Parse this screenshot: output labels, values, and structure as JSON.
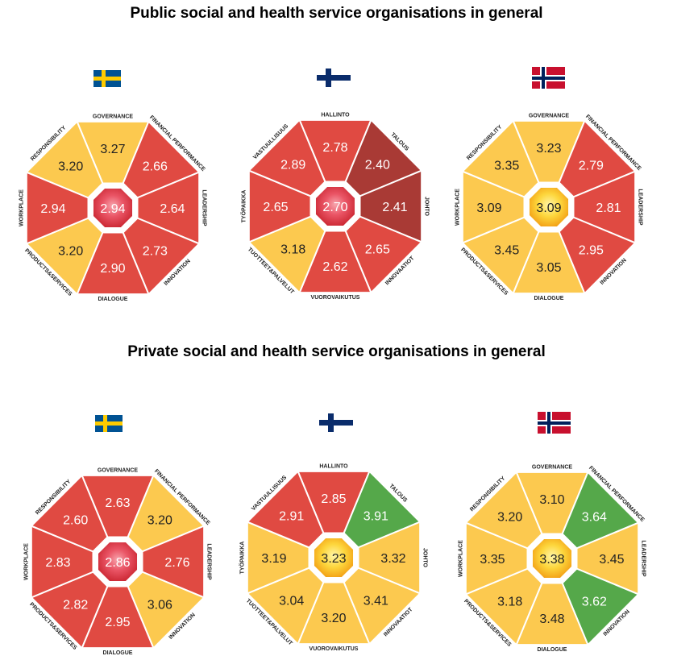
{
  "sections": [
    {
      "title": "Public social and health service organisations in general",
      "wheels": [
        {
          "flag": "sweden-flag",
          "center": "2.94",
          "center_color": "red",
          "segments": [
            {
              "label": "GOVERNANCE",
              "value": "3.27",
              "color": "yellow"
            },
            {
              "label": "FINANCIAL PERFORMANCE",
              "value": "2.66",
              "color": "red"
            },
            {
              "label": "LEADERSHIP",
              "value": "2.64",
              "color": "red"
            },
            {
              "label": "INNOVATION",
              "value": "2.73",
              "color": "red"
            },
            {
              "label": "DIALOGUE",
              "value": "2.90",
              "color": "red"
            },
            {
              "label": "PRODUCTS&SERVICES",
              "value": "3.20",
              "color": "yellow"
            },
            {
              "label": "WORKPLACE",
              "value": "2.94",
              "color": "red"
            },
            {
              "label": "RESPONSIBILITY",
              "value": "3.20",
              "color": "yellow"
            }
          ]
        },
        {
          "flag": "finland-flag",
          "center": "2.70",
          "center_color": "red",
          "segments": [
            {
              "label": "HALLINTO",
              "value": "2.78",
              "color": "red"
            },
            {
              "label": "TALOUS",
              "value": "2.40",
              "color": "darkred"
            },
            {
              "label": "JOHTO",
              "value": "2.41",
              "color": "darkred"
            },
            {
              "label": "INNOVAATIOT",
              "value": "2.65",
              "color": "red"
            },
            {
              "label": "VUOROVAIKUTUS",
              "value": "2.62",
              "color": "red"
            },
            {
              "label": "TUOTTEET&PALVELUT",
              "value": "3.18",
              "color": "yellow"
            },
            {
              "label": "TYÖPAIKKA",
              "value": "2.65",
              "color": "red"
            },
            {
              "label": "VASTUULLISUUS",
              "value": "2.89",
              "color": "red"
            }
          ]
        },
        {
          "flag": "norway-flag",
          "center": "3.09",
          "center_color": "yellow",
          "segments": [
            {
              "label": "GOVERNANCE",
              "value": "3.23",
              "color": "yellow"
            },
            {
              "label": "FINANCIAL PERFORMANCE",
              "value": "2.79",
              "color": "red"
            },
            {
              "label": "LEADERSHIP",
              "value": "2.81",
              "color": "red"
            },
            {
              "label": "INNOVATION",
              "value": "2.95",
              "color": "red"
            },
            {
              "label": "DIALOGUE",
              "value": "3.05",
              "color": "yellow"
            },
            {
              "label": "PRODUCTS&SERVICES",
              "value": "3.45",
              "color": "yellow"
            },
            {
              "label": "WORKPLACE",
              "value": "3.09",
              "color": "yellow"
            },
            {
              "label": "RESPONSIBILITY",
              "value": "3.35",
              "color": "yellow"
            }
          ]
        }
      ]
    },
    {
      "title": "Private social and health service organisations in general",
      "wheels": [
        {
          "flag": "sweden-flag",
          "center": "2.86",
          "center_color": "red",
          "segments": [
            {
              "label": "GOVERNANCE",
              "value": "2.63",
              "color": "red"
            },
            {
              "label": "FINANCIAL PERFORMANCE",
              "value": "3.20",
              "color": "yellow"
            },
            {
              "label": "LEADERSHIP",
              "value": "2.76",
              "color": "red"
            },
            {
              "label": "INNOVATION",
              "value": "3.06",
              "color": "yellow"
            },
            {
              "label": "DIALOGUE",
              "value": "2.95",
              "color": "red"
            },
            {
              "label": "PRODUCTS&SERVICES",
              "value": "2.82",
              "color": "red"
            },
            {
              "label": "WORKPLACE",
              "value": "2.83",
              "color": "red"
            },
            {
              "label": "RESPONSIBILITY",
              "value": "2.60",
              "color": "red"
            }
          ]
        },
        {
          "flag": "finland-flag",
          "center": "3.23",
          "center_color": "yellow",
          "segments": [
            {
              "label": "HALLINTO",
              "value": "2.85",
              "color": "red"
            },
            {
              "label": "TALOUS",
              "value": "3.91",
              "color": "green"
            },
            {
              "label": "JOHTO",
              "value": "3.32",
              "color": "yellow"
            },
            {
              "label": "INNOVAATIOT",
              "value": "3.41",
              "color": "yellow"
            },
            {
              "label": "VUOROVAIKUTUS",
              "value": "3.20",
              "color": "yellow"
            },
            {
              "label": "TUOTTEET&PALVELUT",
              "value": "3.04",
              "color": "yellow"
            },
            {
              "label": "TYÖPAIKKA",
              "value": "3.19",
              "color": "yellow"
            },
            {
              "label": "VASTUULLISUUS",
              "value": "2.91",
              "color": "red"
            }
          ]
        },
        {
          "flag": "norway-flag",
          "center": "3.38",
          "center_color": "yellow",
          "segments": [
            {
              "label": "GOVERNANCE",
              "value": "3.10",
              "color": "yellow"
            },
            {
              "label": "FINANCIAL PERFORMANCE",
              "value": "3.64",
              "color": "green"
            },
            {
              "label": "LEADERSHIP",
              "value": "3.45",
              "color": "yellow"
            },
            {
              "label": "INNOVATION",
              "value": "3.62",
              "color": "green"
            },
            {
              "label": "DIALOGUE",
              "value": "3.48",
              "color": "yellow"
            },
            {
              "label": "PRODUCTS&SERVICES",
              "value": "3.18",
              "color": "yellow"
            },
            {
              "label": "WORKPLACE",
              "value": "3.35",
              "color": "yellow"
            },
            {
              "label": "RESPONSIBILITY",
              "value": "3.20",
              "color": "yellow"
            }
          ]
        }
      ]
    }
  ],
  "colors": {
    "red": "#e04a42",
    "darkred": "#a93a35",
    "yellow": "#fcc94f",
    "green": "#55a84a",
    "red_text": "#ffffff",
    "yellow_text": "#222222"
  }
}
